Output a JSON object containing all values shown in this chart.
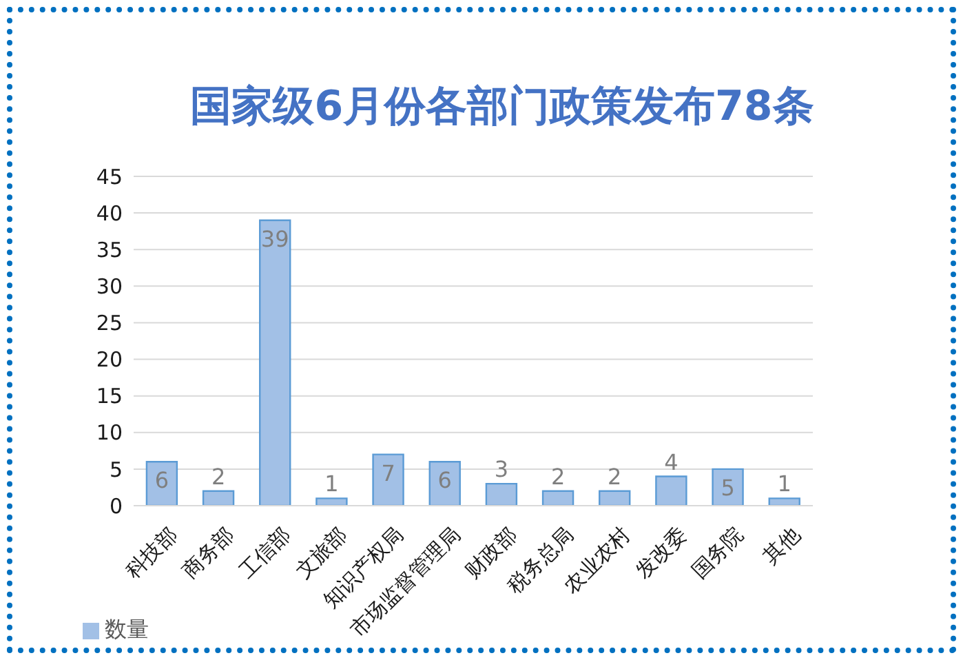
{
  "chart_data": {
    "type": "bar",
    "title": "国家级6月份各部门政策发布78条",
    "categories": [
      "科技部",
      "商务部",
      "工信部",
      "文旅部",
      "知识产权局",
      "市场监督管理局",
      "财政部",
      "税务总局",
      "农业农村",
      "发改委",
      "国务院",
      "其他"
    ],
    "series": [
      {
        "name": "数量",
        "color": "#a2c0e6",
        "values": [
          6,
          2,
          39,
          1,
          7,
          6,
          3,
          2,
          2,
          4,
          5,
          1
        ]
      }
    ],
    "ylim": [
      0,
      45
    ],
    "yticks": [
      0,
      5,
      10,
      15,
      20,
      25,
      30,
      35,
      40,
      45
    ],
    "grid": "y",
    "legend": "bottom left",
    "data_labels": true
  }
}
